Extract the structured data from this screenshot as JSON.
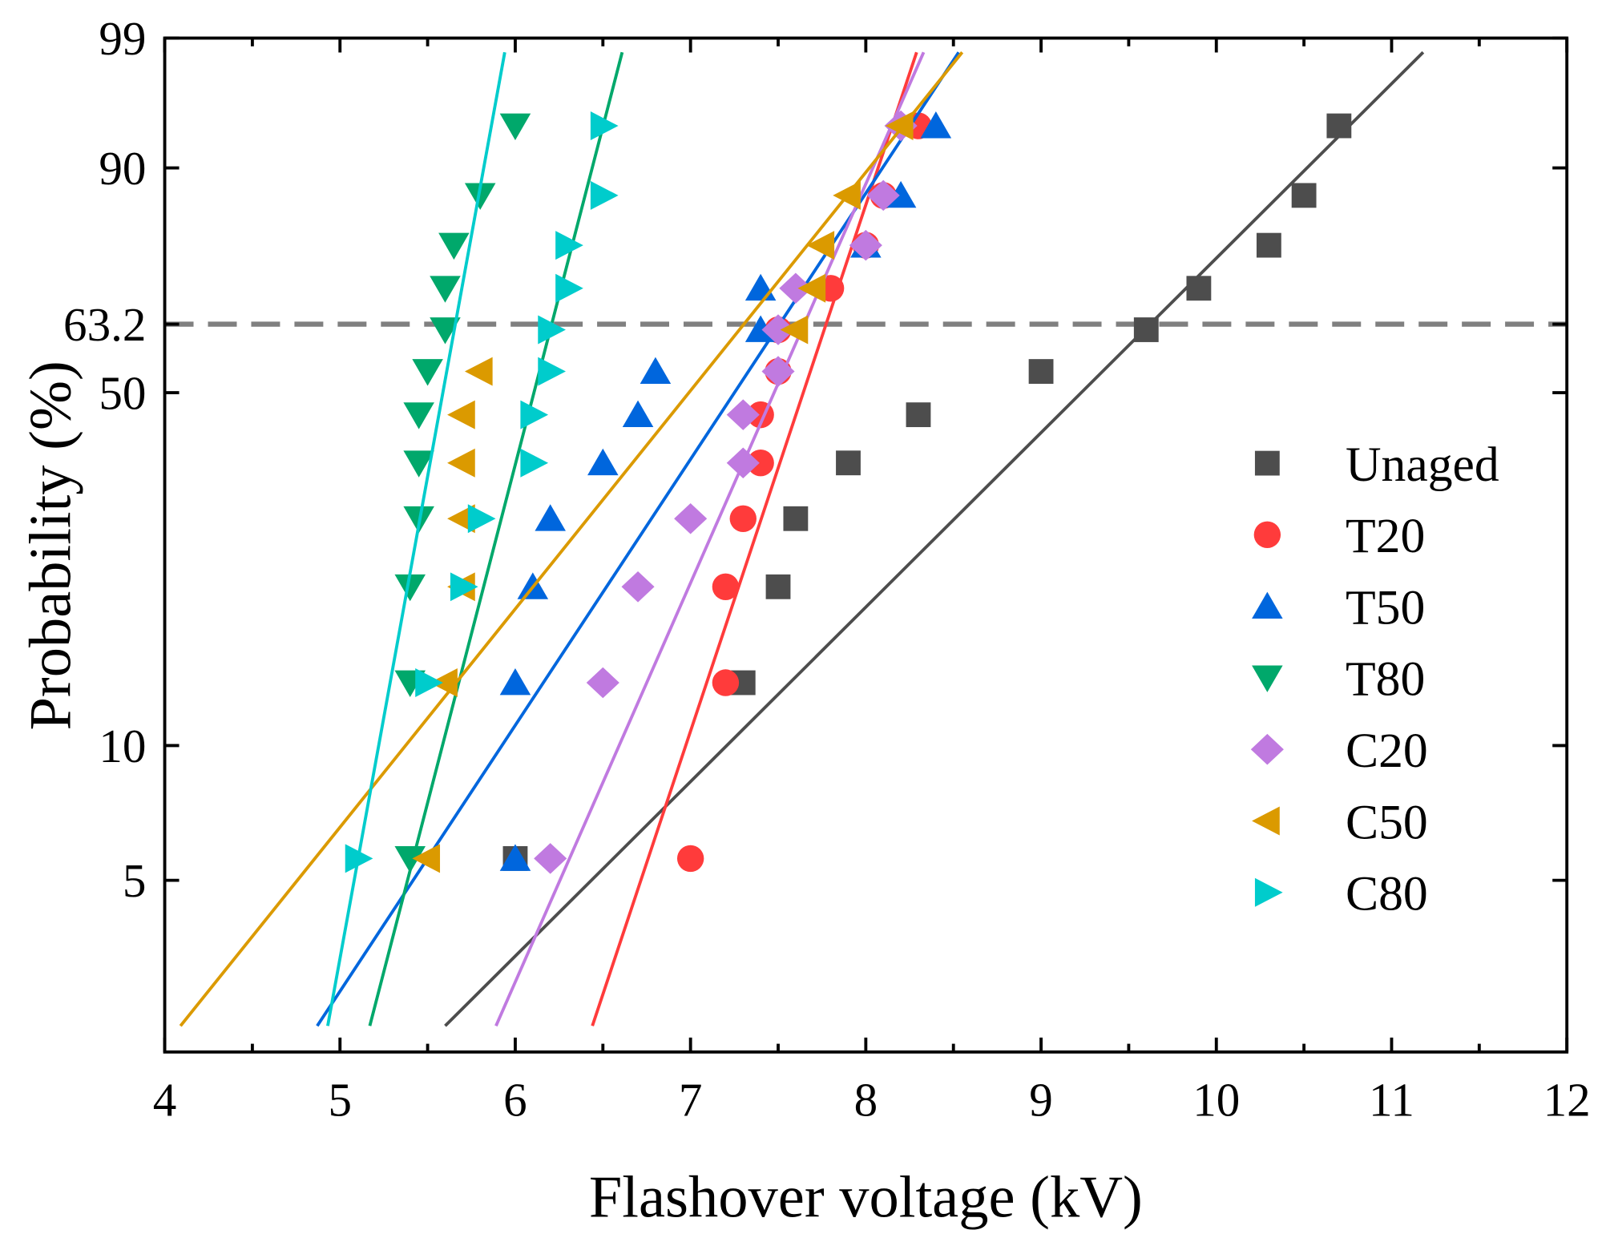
{
  "chart_data": {
    "type": "scatter",
    "title": "",
    "xlabel": "Flashover voltage (kV)",
    "ylabel": "Probability (%)",
    "y_scale": "weibull",
    "xlim": [
      4,
      12
    ],
    "ylim_percent": [
      2.03,
      99
    ],
    "x_ticks": [
      "4",
      "5",
      "6",
      "7",
      "8",
      "9",
      "10",
      "11",
      "12"
    ],
    "y_ticks": [
      {
        "value": 99,
        "label": "99"
      },
      {
        "value": 90,
        "label": "90"
      },
      {
        "value": 63.2,
        "label": "63.2"
      },
      {
        "value": 50,
        "label": "50"
      },
      {
        "value": 10,
        "label": "10"
      },
      {
        "value": 5,
        "label": "5"
      }
    ],
    "reference_line": {
      "value": 63.2,
      "style": "dashed",
      "color": "#808080"
    },
    "grid": false,
    "legend_position": "right",
    "probabilities": [
      5.6,
      13.7,
      21.8,
      29.8,
      37.9,
      46.0,
      54.0,
      62.1,
      70.2,
      78.2,
      86.3,
      94.4
    ],
    "series": [
      {
        "name": "Unaged",
        "marker": "square",
        "color": "#4d4d4d",
        "x": [
          6.0,
          7.3,
          7.5,
          7.6,
          7.9,
          8.3,
          9.0,
          9.6,
          9.9,
          10.3,
          10.5,
          10.7
        ],
        "fit": [
          [
            5.6,
            2.33
          ],
          [
            11.18,
            98.6
          ]
        ]
      },
      {
        "name": "T20",
        "marker": "circle",
        "color": "#ff3b3b",
        "x": [
          7.0,
          7.2,
          7.2,
          7.3,
          7.4,
          7.4,
          7.5,
          7.5,
          7.8,
          8.0,
          8.1,
          8.3
        ],
        "fit": [
          [
            6.44,
            2.33
          ],
          [
            8.29,
            98.6
          ]
        ]
      },
      {
        "name": "T50",
        "marker": "triangle-up",
        "color": "#0066dd",
        "x": [
          6.0,
          6.0,
          6.1,
          6.2,
          6.5,
          6.7,
          6.8,
          7.4,
          7.4,
          8.0,
          8.2,
          8.4
        ],
        "fit": [
          [
            4.87,
            2.33
          ],
          [
            8.53,
            98.6
          ]
        ]
      },
      {
        "name": "T80",
        "marker": "triangle-down",
        "color": "#00a86b",
        "x": [
          5.4,
          5.4,
          5.4,
          5.45,
          5.45,
          5.45,
          5.5,
          5.6,
          5.6,
          5.65,
          5.8,
          6.0
        ],
        "fit": [
          [
            5.17,
            2.33
          ],
          [
            6.61,
            98.6
          ]
        ]
      },
      {
        "name": "C20",
        "marker": "diamond",
        "color": "#c07ae0",
        "x": [
          6.2,
          6.5,
          6.7,
          7.0,
          7.3,
          7.3,
          7.5,
          7.5,
          7.6,
          8.0,
          8.1,
          8.2
        ],
        "fit": [
          [
            5.89,
            2.33
          ],
          [
            8.33,
            98.6
          ]
        ]
      },
      {
        "name": "C50",
        "marker": "triangle-left",
        "color": "#db9a00",
        "x": [
          5.5,
          5.6,
          5.7,
          5.7,
          5.7,
          5.7,
          5.8,
          7.6,
          7.7,
          7.75,
          7.9,
          8.2
        ],
        "fit": [
          [
            4.09,
            2.33
          ],
          [
            8.55,
            98.6
          ]
        ]
      },
      {
        "name": "C80",
        "marker": "triangle-right",
        "color": "#00cccc",
        "x": [
          5.1,
          5.5,
          5.7,
          5.8,
          6.1,
          6.1,
          6.2,
          6.2,
          6.3,
          6.3,
          6.5,
          6.5
        ],
        "fit": [
          [
            4.93,
            2.33
          ],
          [
            5.94,
            98.6
          ]
        ]
      }
    ]
  }
}
